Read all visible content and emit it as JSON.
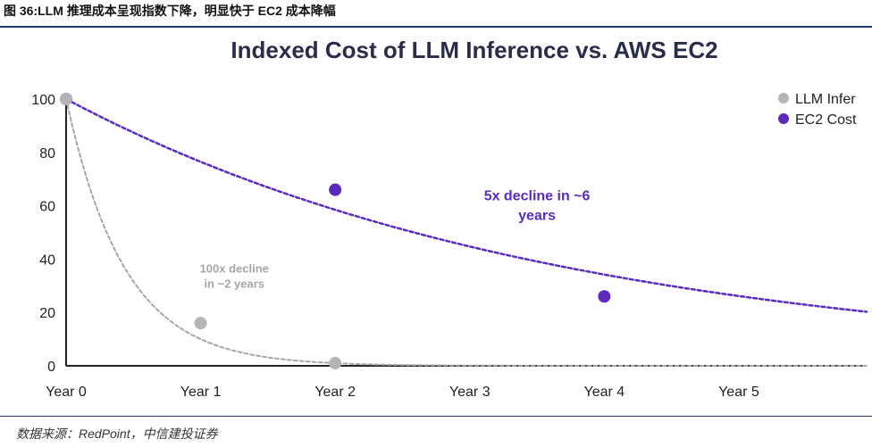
{
  "figure": {
    "caption": "图 36:LLM 推理成本呈现指数下降，明显快于 EC2 成本降幅",
    "source": "数据来源：RedPoint，中信建投证券"
  },
  "colors": {
    "llm": "#b4b4b8",
    "llm_line": "#a6a6aa",
    "ec2": "#5b2bbd",
    "axis": "#222222",
    "text": "#222222"
  },
  "chart_data": {
    "type": "scatter",
    "title": "Indexed Cost of LLM Inference vs. AWS EC2",
    "xlabel": "",
    "ylabel": "",
    "categories": [
      "Year 0",
      "Year 1",
      "Year 2",
      "Year 3",
      "Year 4",
      "Year 5"
    ],
    "y_ticks": [
      "0",
      "20",
      "40",
      "60",
      "80",
      "100"
    ],
    "xlim": [
      0,
      5.95
    ],
    "ylim": [
      0,
      100
    ],
    "grid": false,
    "legend_position": "top-right",
    "series": [
      {
        "name": "LLM Infer",
        "color_key": "llm",
        "points": [
          {
            "x": 0,
            "y": 100
          },
          {
            "x": 1,
            "y": 16
          },
          {
            "x": 2,
            "y": 1
          }
        ],
        "trend": {
          "style": "dashed",
          "model": "exponential",
          "rate": 2.3026,
          "to": 5.95
        }
      },
      {
        "name": "EC2 Cost",
        "color_key": "ec2",
        "points": [
          {
            "x": 0,
            "y": 100
          },
          {
            "x": 2,
            "y": 66
          },
          {
            "x": 4,
            "y": 26
          }
        ],
        "trend": {
          "style": "dashed",
          "model": "exponential",
          "rate": 0.2682,
          "to": 5.95
        }
      }
    ],
    "annotations": [
      {
        "lines": [
          "5x decline in ~6",
          "years"
        ],
        "color_key": "ec2",
        "x": 3.5,
        "y": 62
      },
      {
        "lines": [
          "100x decline",
          "in ~2 years"
        ],
        "color_key": "llm_line",
        "x": 1.25,
        "y": 35
      }
    ]
  }
}
